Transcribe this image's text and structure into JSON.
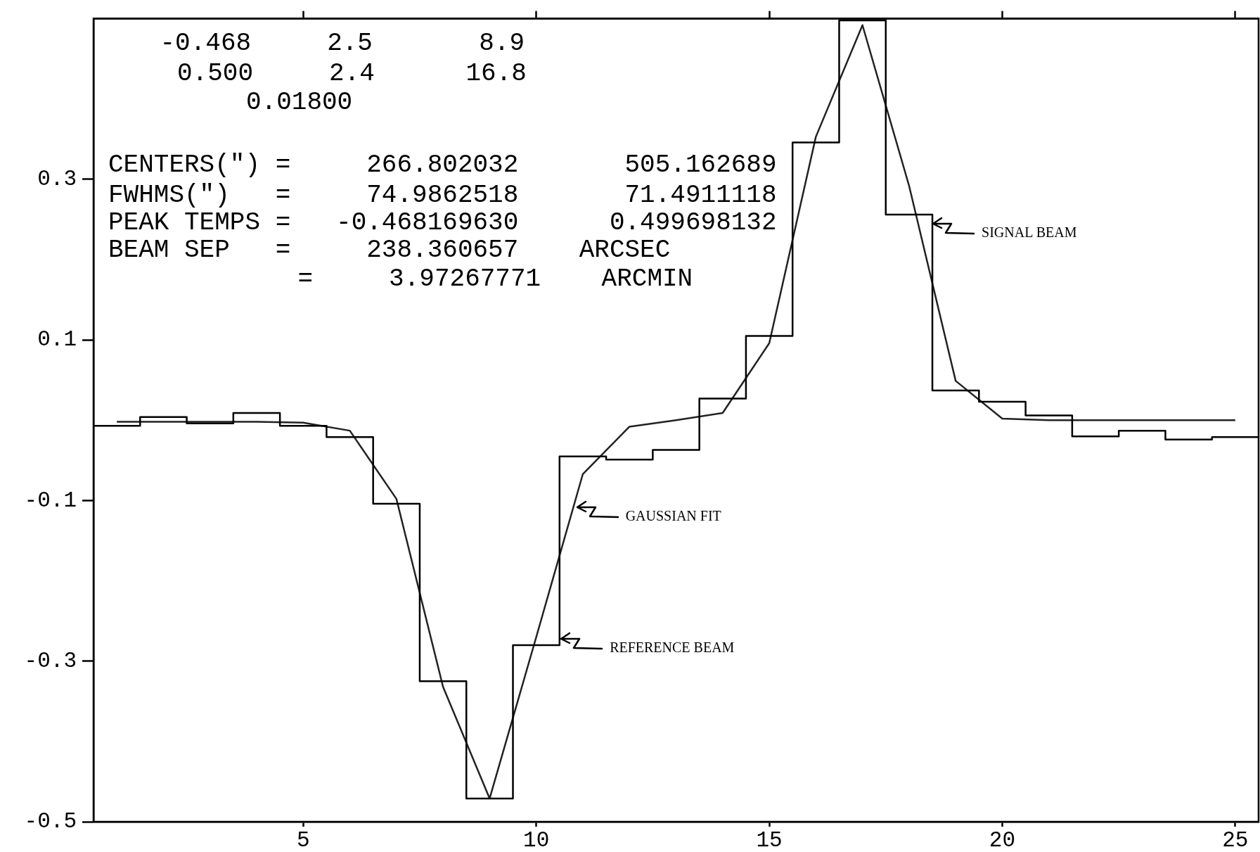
{
  "chart_data": {
    "type": "histogram",
    "series": [
      {
        "color": "#000000",
        "bins": [
          0.5,
          1.5,
          2.5,
          3.5,
          4.5,
          5.5,
          6.5,
          7.5,
          8.5,
          9.5,
          10.5,
          11.5,
          12.5,
          13.5,
          14.5,
          15.5,
          16.5,
          17.5,
          18.5,
          19.5,
          20.5,
          21.5,
          22.5,
          23.5,
          24.5,
          25.5
        ],
        "values": [
          -0.007,
          0.004,
          -0.004,
          0.009,
          -0.007,
          -0.021,
          -0.104,
          -0.325,
          -0.471,
          -0.28,
          -0.045,
          -0.049,
          -0.037,
          0.027,
          0.105,
          0.346,
          0.498,
          0.256,
          0.037,
          0.023,
          0.006,
          -0.02,
          -0.013,
          -0.024,
          -0.021
        ]
      },
      {
        "type": "line",
        "color": "#222222",
        "x": [
          1,
          2,
          3,
          4,
          5,
          6,
          7,
          8,
          9,
          10,
          11,
          12,
          13,
          14,
          15,
          16,
          17,
          18,
          19,
          20,
          21,
          22,
          23,
          24,
          25
        ],
        "values": [
          -0.002,
          -0.002,
          -0.002,
          -0.002,
          -0.003,
          -0.013,
          -0.098,
          -0.332,
          -0.471,
          -0.27,
          -0.067,
          -0.008,
          0.0,
          0.009,
          0.096,
          0.353,
          0.492,
          0.292,
          0.049,
          0.002,
          0.0,
          0.0,
          0.0,
          0.0,
          0.0
        ]
      }
    ],
    "xlim": [
      0.5,
      25.5
    ],
    "xticks": [
      5,
      10,
      15,
      20,
      25
    ],
    "ylim": [
      -0.5,
      0.5
    ],
    "yticks": [
      -0.5,
      -0.3,
      -0.1,
      0.1,
      0.3
    ],
    "legend": false,
    "grid": false,
    "annotations": [
      "-0.468     2.5       8.9",
      "0.500     2.4      16.8",
      "0.01800",
      "CENTERS(\") =     266.802032       505.162689",
      "FWHMS(\")   =     74.9862518       71.4911118",
      "PEAK TEMPS =   -0.468169630      0.499698132",
      "BEAM SEP   =     238.360657    ARCSEC",
      "=     3.97267771    ARCMIN",
      {
        "text": "SIGNAL BEAM",
        "x": 18.5,
        "y": 0.245
      },
      {
        "text": "GAUSSIAN FIT",
        "x": 10.86,
        "y": -0.108
      },
      {
        "text": "REFERENCE BEAM",
        "x": 10.52,
        "y": -0.272
      }
    ]
  }
}
